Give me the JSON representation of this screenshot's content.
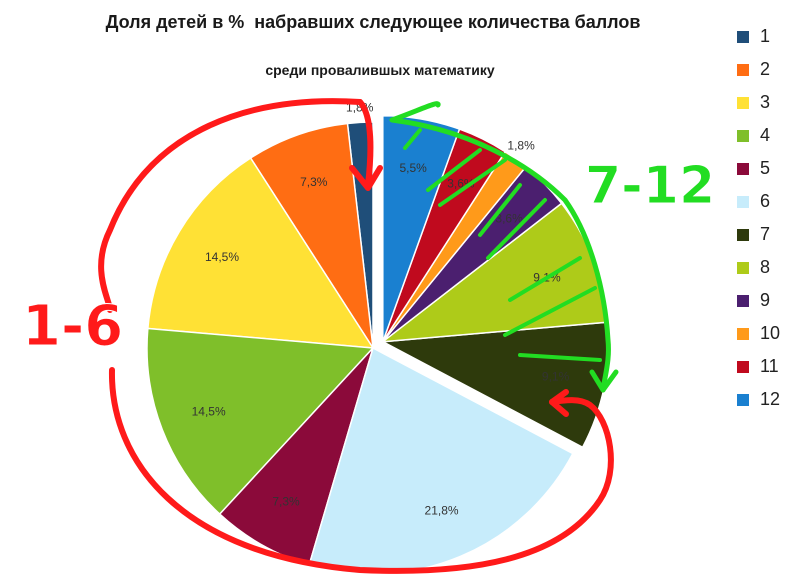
{
  "chart_data": {
    "type": "pie",
    "title": "Доля детей в %  набравших следующее количества баллов",
    "subtitle": "среди провалившых математику",
    "categories": [
      "1",
      "2",
      "3",
      "4",
      "5",
      "6",
      "7",
      "8",
      "9",
      "10",
      "11",
      "12"
    ],
    "values": [
      1.8,
      7.3,
      14.5,
      14.5,
      7.3,
      21.8,
      9.1,
      9.1,
      3.6,
      1.8,
      3.6,
      5.5
    ],
    "value_labels": [
      "1,8%",
      "7,3%",
      "14,5%",
      "14,5%",
      "7,3%",
      "21,8%",
      "9,1%",
      "9,1%",
      "3,6%",
      "1,8%",
      "3,6%",
      "5,5%"
    ],
    "colors": [
      "#1f4e79",
      "#ff6d13",
      "#ffe135",
      "#7fbf2a",
      "#8b0a3a",
      "#c7ecfb",
      "#2e3a0c",
      "#aecb19",
      "#4b1f6f",
      "#ff9a1a",
      "#c00a1e",
      "#1a80d0"
    ],
    "legend_position": "right",
    "exploded_categories": [
      "7",
      "8",
      "9",
      "10",
      "11",
      "12"
    ]
  },
  "annotations": {
    "group_left": "1-6",
    "group_right": "7-12",
    "group_left_color": "#ff1a1a",
    "group_right_color": "#22dd22"
  }
}
